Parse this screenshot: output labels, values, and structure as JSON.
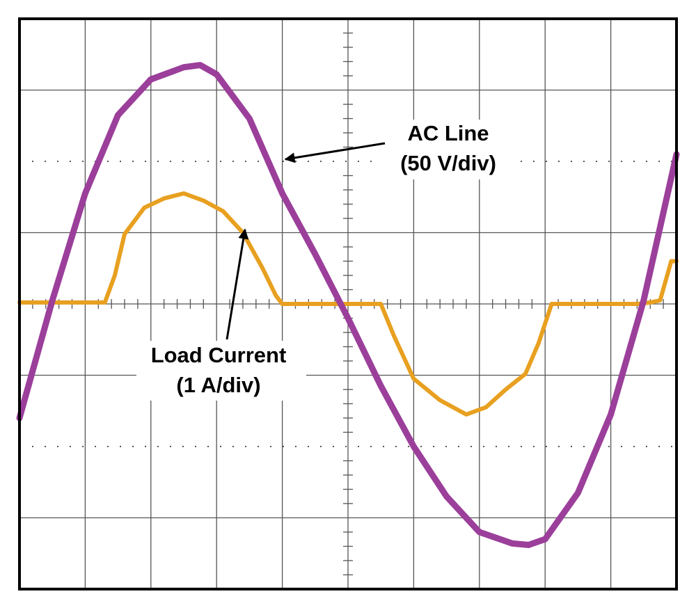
{
  "chart_data": {
    "type": "line",
    "title": "",
    "xlabel": "",
    "ylabel": "",
    "grid": true,
    "x_divisions": 10,
    "y_divisions": 8,
    "xlim": [
      0,
      10
    ],
    "ylim": [
      -4,
      4
    ],
    "series": [
      {
        "name": "AC Line",
        "units_per_div": "50 V/div",
        "color": "#9B3F9B",
        "x": [
          0.0,
          0.5,
          1.0,
          1.5,
          2.0,
          2.5,
          2.75,
          3.0,
          3.5,
          4.0,
          4.5,
          5.0,
          5.5,
          6.0,
          6.5,
          7.0,
          7.5,
          7.75,
          8.0,
          8.5,
          9.0,
          9.5,
          10.0
        ],
        "y": [
          -1.6,
          0.05,
          1.55,
          2.65,
          3.15,
          3.32,
          3.35,
          3.22,
          2.6,
          1.55,
          0.7,
          -0.2,
          -1.15,
          -2.0,
          -2.7,
          -3.2,
          -3.36,
          -3.38,
          -3.3,
          -2.65,
          -1.55,
          0.05,
          2.1
        ]
      },
      {
        "name": "Load Current",
        "units_per_div": "1 A/div",
        "color": "#E8A020",
        "x": [
          0.0,
          1.3,
          1.45,
          1.6,
          1.9,
          2.2,
          2.5,
          2.8,
          3.1,
          3.4,
          3.7,
          3.9,
          4.0,
          5.5,
          5.7,
          6.0,
          6.4,
          6.8,
          7.1,
          7.4,
          7.7,
          7.9,
          8.1,
          9.4,
          9.6,
          9.75,
          9.92,
          10.0
        ],
        "y": [
          0.02,
          0.02,
          0.4,
          0.98,
          1.35,
          1.48,
          1.55,
          1.45,
          1.3,
          1.0,
          0.5,
          0.12,
          0.0,
          0.0,
          -0.45,
          -1.05,
          -1.35,
          -1.55,
          -1.45,
          -1.2,
          -0.98,
          -0.55,
          0.0,
          0.0,
          0.02,
          0.05,
          0.6,
          0.6
        ]
      }
    ],
    "annotations": [
      {
        "line1": "AC Line",
        "line2": "(50 V/div)",
        "target_series": "AC Line"
      },
      {
        "line1": "Load Current",
        "line2": "(1 A/div)",
        "target_series": "Load Current"
      }
    ]
  }
}
